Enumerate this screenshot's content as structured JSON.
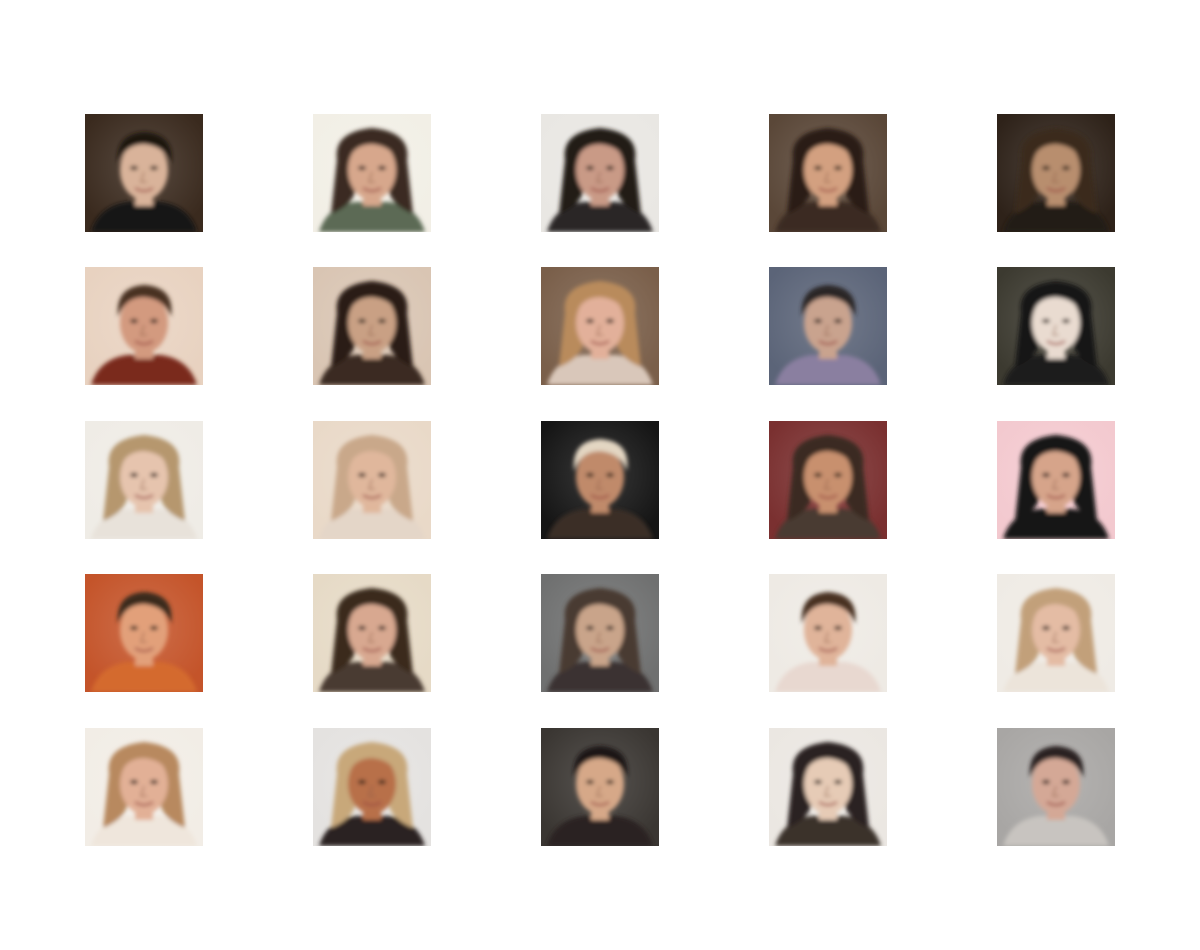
{
  "grid": {
    "rows": 5,
    "columns": 5,
    "tiles": [
      {
        "id": "r1c1",
        "bg": "#3a2a1e",
        "hair": "#1c1510",
        "skin": "#d9b39a",
        "shirt": "#161616",
        "hair_style": "short"
      },
      {
        "id": "r1c2",
        "bg": "#f2efe6",
        "hair": "#3b2a20",
        "skin": "#d7a78c",
        "shirt": "#5c6b55",
        "hair_style": "long"
      },
      {
        "id": "r1c3",
        "bg": "#e9e7e3",
        "hair": "#231a17",
        "skin": "#c99a86",
        "shirt": "#2b2727",
        "hair_style": "long"
      },
      {
        "id": "r1c4",
        "bg": "#5a4738",
        "hair": "#2a1d15",
        "skin": "#d3a080",
        "shirt": "#3a2c22",
        "hair_style": "long"
      },
      {
        "id": "r1c5",
        "bg": "#2e2219",
        "hair": "#3a2a1c",
        "skin": "#b88e6e",
        "shirt": "#241a13",
        "hair_style": "long"
      },
      {
        "id": "r2c1",
        "bg": "#e8d2c0",
        "hair": "#4a3020",
        "skin": "#d39a7f",
        "shirt": "#7a2a1e",
        "hair_style": "short"
      },
      {
        "id": "r2c2",
        "bg": "#d9c5b3",
        "hair": "#2c1e16",
        "skin": "#c9a084",
        "shirt": "#3a2a20",
        "hair_style": "long"
      },
      {
        "id": "r2c3",
        "bg": "#7a5f4a",
        "hair": "#b98b5c",
        "skin": "#e2b09a",
        "shirt": "#d9c7ba",
        "hair_style": "long"
      },
      {
        "id": "r2c4",
        "bg": "#5b6478",
        "hair": "#2a2528",
        "skin": "#c9a38e",
        "shirt": "#8a7fa0",
        "hair_style": "short"
      },
      {
        "id": "r2c5",
        "bg": "#3c3a30",
        "hair": "#141212",
        "skin": "#e9dbd0",
        "shirt": "#1d1b1a",
        "hair_style": "long"
      },
      {
        "id": "r3c1",
        "bg": "#efece6",
        "hair": "#b6976e",
        "skin": "#e6c4ae",
        "shirt": "#e8e2da",
        "hair_style": "long"
      },
      {
        "id": "r3c2",
        "bg": "#e9d9c8",
        "hair": "#c9a88a",
        "skin": "#e0b79c",
        "shirt": "#e4d6c8",
        "hair_style": "long"
      },
      {
        "id": "r3c3",
        "bg": "#151515",
        "hair": "#e3d6c2",
        "skin": "#c08a6a",
        "shirt": "#3a2e26",
        "hair_style": "short"
      },
      {
        "id": "r3c4",
        "bg": "#7a3030",
        "hair": "#3b2a22",
        "skin": "#c8906e",
        "shirt": "#4a3a32",
        "hair_style": "long"
      },
      {
        "id": "r3c5",
        "bg": "#f3c9cf",
        "hair": "#141414",
        "skin": "#d6a48a",
        "shirt": "#181818",
        "hair_style": "long"
      },
      {
        "id": "r4c1",
        "bg": "#c4542a",
        "hair": "#3a2a1c",
        "skin": "#e2a07a",
        "shirt": "#d46a2e",
        "hair_style": "short"
      },
      {
        "id": "r4c2",
        "bg": "#e6dac6",
        "hair": "#3a2a1e",
        "skin": "#d8a890",
        "shirt": "#4a3a30",
        "hair_style": "long"
      },
      {
        "id": "r4c3",
        "bg": "#6f7070",
        "hair": "#4a3b30",
        "skin": "#c9a48a",
        "shirt": "#3a3330",
        "hair_style": "long"
      },
      {
        "id": "r4c4",
        "bg": "#eeeae4",
        "hair": "#4a3022",
        "skin": "#e0b49a",
        "shirt": "#e8d8d0",
        "hair_style": "short"
      },
      {
        "id": "r4c5",
        "bg": "#efebe5",
        "hair": "#c2a07a",
        "skin": "#e4bca4",
        "shirt": "#ece4da",
        "hair_style": "long"
      },
      {
        "id": "r5c1",
        "bg": "#f2ede6",
        "hair": "#b8895e",
        "skin": "#e2b096",
        "shirt": "#efe6dc",
        "hair_style": "long"
      },
      {
        "id": "r5c2",
        "bg": "#e4e2e0",
        "hair": "#c8a87a",
        "skin": "#b8704a",
        "shirt": "#2a2220",
        "hair_style": "long"
      },
      {
        "id": "r5c3",
        "bg": "#3a3632",
        "hair": "#1c1818",
        "skin": "#d6a888",
        "shirt": "#2a2420",
        "hair_style": "short"
      },
      {
        "id": "r5c4",
        "bg": "#ebe7e2",
        "hair": "#2a2220",
        "skin": "#e6cbb6",
        "shirt": "#3a302a",
        "hair_style": "long"
      },
      {
        "id": "r5c5",
        "bg": "#a8a6a4",
        "hair": "#2a2424",
        "skin": "#d4a896",
        "shirt": "#c8c4c0",
        "hair_style": "short"
      }
    ]
  }
}
